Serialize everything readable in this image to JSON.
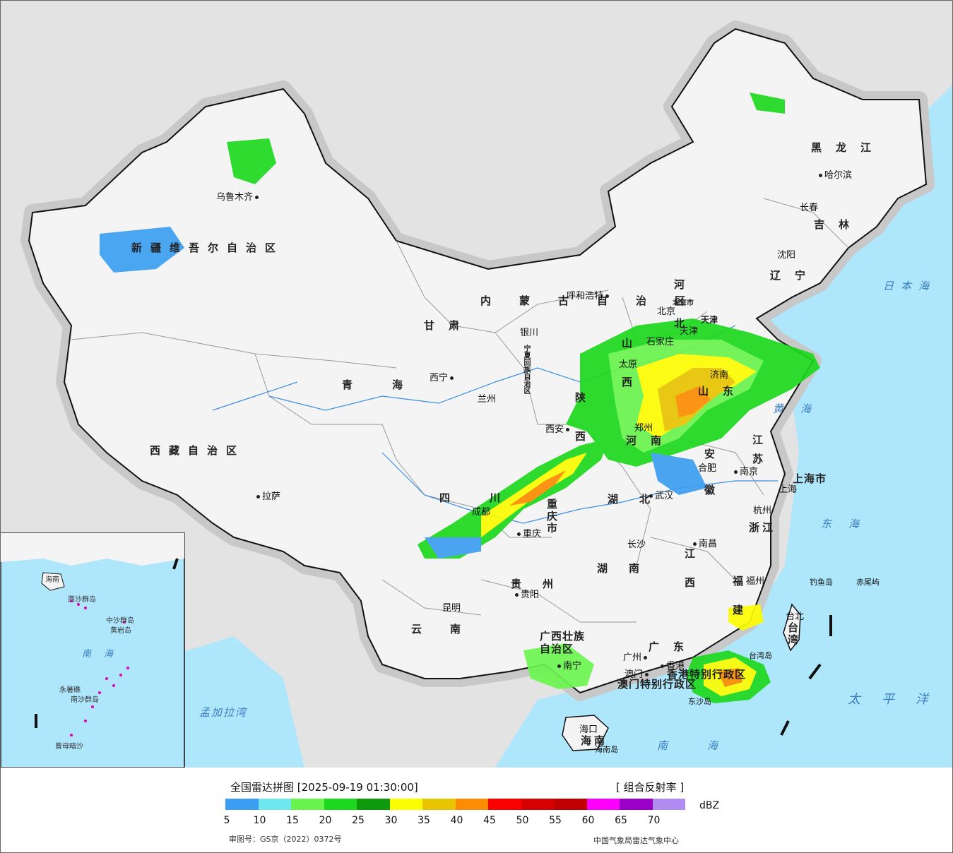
{
  "map": {
    "provinces": [
      {
        "name": "新疆维吾尔自治区",
        "id": "xinjiang"
      },
      {
        "name": "西藏自治区",
        "id": "xizang"
      },
      {
        "name": "青海",
        "id": "qinghai"
      },
      {
        "name": "甘肃",
        "id": "gansu"
      },
      {
        "name": "内蒙古自治区",
        "id": "neimenggu"
      },
      {
        "name": "黑龙江",
        "id": "heilongjiang"
      },
      {
        "name": "吉林",
        "id": "jilin"
      },
      {
        "name": "辽宁",
        "id": "liaoning"
      },
      {
        "name": "河北",
        "id": "hebei"
      },
      {
        "name": "山西",
        "id": "shanxi"
      },
      {
        "name": "陕西",
        "id": "shaanxi"
      },
      {
        "name": "河南",
        "id": "henan"
      },
      {
        "name": "山东",
        "id": "shandong"
      },
      {
        "name": "四川",
        "id": "sichuan"
      },
      {
        "name": "重庆市",
        "id": "chongqing"
      },
      {
        "name": "湖北",
        "id": "hubei"
      },
      {
        "name": "湖南",
        "id": "hunan"
      },
      {
        "name": "贵州",
        "id": "guizhou"
      },
      {
        "name": "云南",
        "id": "yunnan"
      },
      {
        "name": "广西壮族自治区",
        "id": "guangxi"
      },
      {
        "name": "广东",
        "id": "guangdong"
      },
      {
        "name": "江西",
        "id": "jiangxi"
      },
      {
        "name": "福建",
        "id": "fujian"
      },
      {
        "name": "浙江",
        "id": "zhejiang"
      },
      {
        "name": "安徽",
        "id": "anhui"
      },
      {
        "name": "江苏",
        "id": "jiangsu"
      },
      {
        "name": "上海市",
        "id": "shanghai"
      },
      {
        "name": "海南",
        "id": "hainan"
      },
      {
        "name": "台湾",
        "id": "taiwan"
      },
      {
        "name": "宁夏回族自治区",
        "id": "ningxia"
      },
      {
        "name": "北京市",
        "id": "beijing"
      },
      {
        "name": "天津",
        "id": "tianjin"
      },
      {
        "name": "香港特别行政区",
        "id": "hongkong"
      },
      {
        "name": "澳门特别行政区",
        "id": "macau"
      }
    ],
    "cities": [
      "乌鲁木齐",
      "拉萨",
      "西宁",
      "兰州",
      "银川",
      "呼和浩特",
      "哈尔滨",
      "长春",
      "沈阳",
      "北京",
      "天津",
      "石家庄",
      "太原",
      "济南",
      "郑州",
      "西安",
      "合肥",
      "南京",
      "上海",
      "杭州",
      "武汉",
      "成都",
      "重庆",
      "长沙",
      "南昌",
      "贵阳",
      "昆明",
      "南宁",
      "广州",
      "香港",
      "澳门",
      "福州",
      "台北",
      "海口"
    ],
    "seas": [
      "日本海",
      "黄海",
      "东海",
      "太平洋",
      "南海",
      "孟加拉湾"
    ],
    "islands": [
      "钓鱼岛",
      "赤尾屿",
      "台湾岛",
      "东沙岛",
      "海南岛"
    ],
    "inset": {
      "labels": [
        "南海",
        "海南",
        "中沙群岛",
        "黄岩岛",
        "永暑礁",
        "南沙群岛",
        "曾母暗沙",
        "西沙群岛"
      ]
    }
  },
  "legend": {
    "title": "全国雷达拼图 [2025-09-19 01:30:00]",
    "product": "[ 组合反射率 ]",
    "unit": "dBZ",
    "ticks": [
      "5",
      "10",
      "15",
      "20",
      "25",
      "30",
      "35",
      "40",
      "45",
      "50",
      "55",
      "60",
      "65",
      "70"
    ],
    "colors": [
      "#3c9ef0",
      "#6ee8ee",
      "#6af44e",
      "#1ed81e",
      "#0d9a0d",
      "#fcfc03",
      "#e8c403",
      "#fc8c03",
      "#fc0000",
      "#d60000",
      "#c00000",
      "#fc00fc",
      "#9a00c8",
      "#b08cf0"
    ],
    "approval": "审图号：GS京（2022）0372号",
    "credit": "中国气象局雷达气象中心"
  }
}
